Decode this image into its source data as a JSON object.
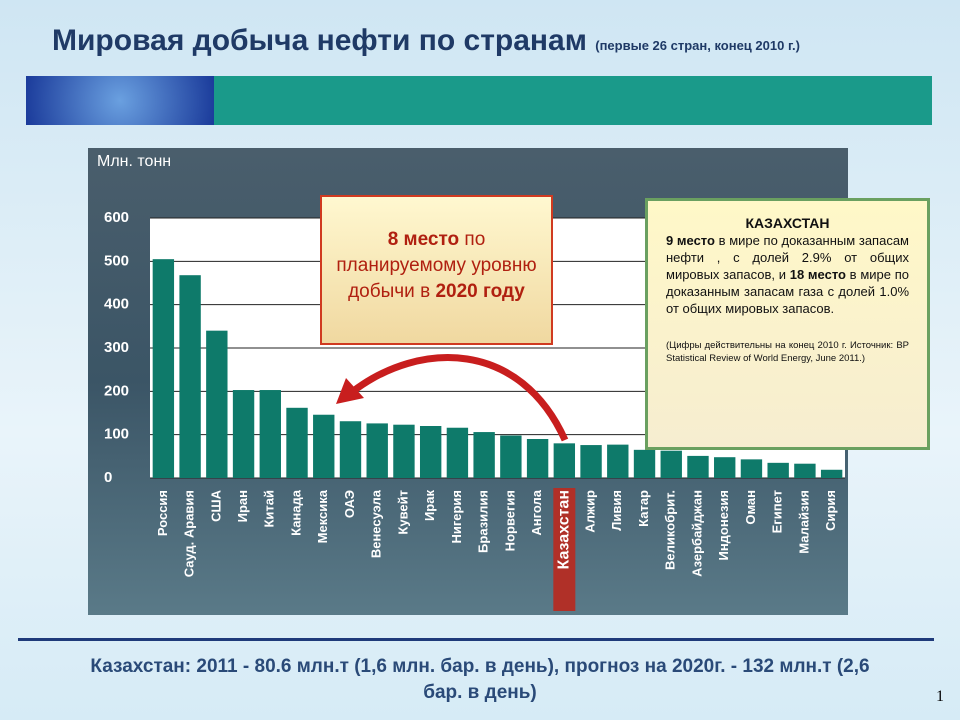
{
  "header": {
    "title": "Мировая добыча нефти по странам",
    "subtitle": "(первые 26 стран, конец 2010 г.)"
  },
  "chart_data": {
    "type": "bar",
    "y_label": "Млн. тонн",
    "categories": [
      "Россия",
      "Сауд. Аравия",
      "США",
      "Иран",
      "Китай",
      "Канада",
      "Мексика",
      "ОАЭ",
      "Венесуэла",
      "Кувейт",
      "Ирак",
      "Нигерия",
      "Бразилия",
      "Норвегия",
      "Ангола",
      "Казахстан",
      "Алжир",
      "Ливия",
      "Катар",
      "Великобрит.",
      "Азербайджан",
      "Индонезия",
      "Оман",
      "Египет",
      "Малайзия",
      "Сирия"
    ],
    "values": [
      505,
      468,
      340,
      203,
      203,
      162,
      146,
      131,
      126,
      123,
      120,
      116,
      106,
      98,
      90,
      80,
      76,
      77,
      65,
      63,
      51,
      48,
      43,
      35,
      33,
      19
    ],
    "color": "#0e7a6a",
    "highlight": "Казахстан",
    "highlight_color": "#b03028",
    "ylim": [
      0,
      600
    ],
    "yticks": [
      0,
      100,
      200,
      300,
      400,
      500,
      600
    ],
    "grid": true,
    "annotations": [
      {
        "segments": [
          {
            "text": "8 место",
            "bold": true
          },
          {
            "text": " по планируемому уровню добычи в ",
            "bold": false
          },
          {
            "text": "2020 году",
            "bold": true
          }
        ]
      },
      {
        "heading": "КАЗАХСТАН",
        "segments": [
          {
            "text": "9 место",
            "bold": true
          },
          {
            "text": " в мире по доказанным запасам нефти , с долей 2.9% от общих мировых запасов, и ",
            "bold": false
          },
          {
            "text": "18 место",
            "bold": true
          },
          {
            "text": " в мире по доказанным запасам газа с долей 1.0% от общих мировых запасов.",
            "bold": false
          }
        ],
        "note": "(Цифры действительны на конец 2010 г. Источник: BP Statistical Review of World Energy, June 2011.)"
      }
    ]
  },
  "footer": {
    "text": "Казахстан: 2011 - 80.6 млн.т (1,6 млн. бар. в день), прогноз на 2020г. - 132 млн.т (2,6 бар. в день)",
    "page": "1"
  }
}
